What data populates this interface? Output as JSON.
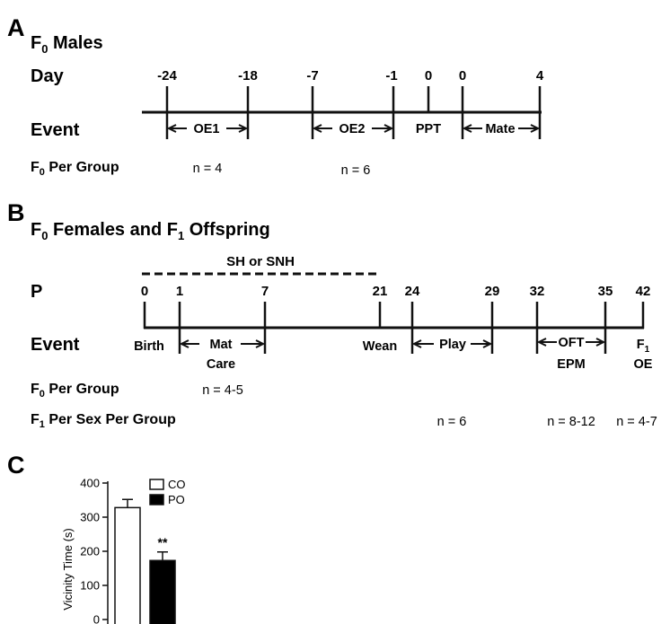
{
  "panel_a": {
    "letter": "A",
    "title": "F",
    "title_sub": "0",
    "title_rest": " Males",
    "row_day": "Day",
    "row_event": "Event",
    "per_group_main": "F",
    "per_group_sub": "0",
    "per_group_rest": " Per Group",
    "ticks": [
      "-24",
      "-18",
      "-7",
      "-1",
      "0",
      "0",
      "4"
    ],
    "segments": [
      "OE1",
      "OE2",
      "PPT",
      "Mate"
    ],
    "n_values": [
      "n = 4",
      "n = 6"
    ]
  },
  "panel_b": {
    "letter": "B",
    "title": "F",
    "title_sub": "0",
    "title_mid": " Females and F",
    "title_sub2": "1",
    "title_rest": " Offspring",
    "treatment": "SH or SNH",
    "row_p": "P",
    "row_event": "Event",
    "f0_main": "F",
    "f0_sub": "0",
    "f0_rest": " Per Group",
    "f1_main": "F",
    "f1_sub": "1",
    "f1_rest": " Per Sex Per Group",
    "ticks": [
      "0",
      "1",
      "7",
      "21",
      "24",
      "29",
      "32",
      "35",
      "42"
    ],
    "birth": "Birth",
    "mat": "Mat",
    "care": "Care",
    "wean": "Wean",
    "play": "Play",
    "oft": "OFT",
    "epm": "EPM",
    "f1_main_end": "F",
    "f1_sub_end": "1",
    "oe": "OE",
    "n_f0": "n = 4-5",
    "n_play": "n = 6",
    "n_oft": "n = 8-12",
    "n_oe": "n = 4-7"
  },
  "panel_c": {
    "letter": "C",
    "significance": "**",
    "legend_co": "CO",
    "legend_po": "PO"
  },
  "chart_data": {
    "type": "bar",
    "categories": [
      "CO",
      "PO"
    ],
    "values": [
      328,
      173
    ],
    "errors": [
      24,
      25
    ],
    "colors": [
      "#ffffff",
      "#000000"
    ],
    "ylabel": "Vicinity Time (s)",
    "ylim": [
      0,
      400
    ],
    "yticks": [
      "0",
      "100",
      "200",
      "300",
      "400"
    ],
    "legend_position": "top-right",
    "grid": false
  }
}
